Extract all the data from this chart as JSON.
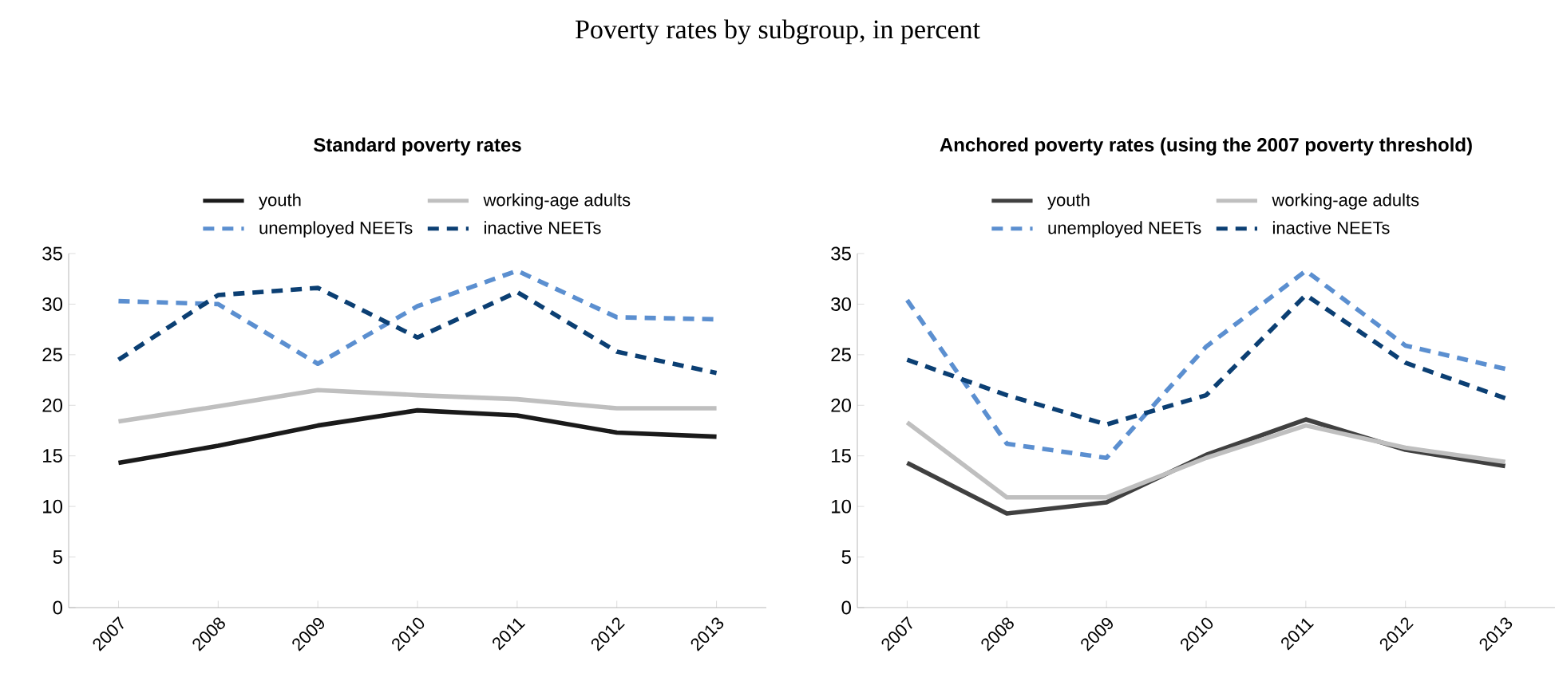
{
  "chart_data": [
    {
      "type": "line",
      "title": "Standard poverty rates",
      "annotations": [
        "Poverty rates by subgroup, in percent"
      ],
      "categories": [
        "2007",
        "2008",
        "2009",
        "2010",
        "2011",
        "2012",
        "2013"
      ],
      "ylim": [
        0,
        35
      ],
      "yticks": [
        0,
        5,
        10,
        15,
        20,
        25,
        30,
        35
      ],
      "legend": "top",
      "grid": false,
      "marker": "none",
      "series": [
        {
          "name": "youth",
          "color": "#1a1a1a",
          "line_style": "solid",
          "values": [
            14.3,
            16.0,
            18.0,
            19.5,
            19.0,
            17.3,
            16.9
          ]
        },
        {
          "name": "working-age adults",
          "color": "#bfbfbf",
          "line_style": "solid",
          "values": [
            18.4,
            19.9,
            21.5,
            21.0,
            20.6,
            19.7,
            19.7
          ]
        },
        {
          "name": "unemployed NEETs",
          "color": "#5b8fd0",
          "line_style": "dashed",
          "values": [
            30.3,
            30.0,
            24.1,
            29.8,
            33.3,
            28.7,
            28.5
          ]
        },
        {
          "name": "inactive NEETs",
          "color": "#0b3f73",
          "line_style": "dashed",
          "values": [
            24.5,
            30.9,
            31.6,
            26.7,
            31.2,
            25.3,
            23.2
          ]
        }
      ]
    },
    {
      "type": "line",
      "title": "Anchored poverty rates (using the 2007 poverty threshold)",
      "categories": [
        "2007",
        "2008",
        "2009",
        "2010",
        "2011",
        "2012",
        "2013"
      ],
      "ylim": [
        0,
        35
      ],
      "yticks": [
        0,
        5,
        10,
        15,
        20,
        25,
        30,
        35
      ],
      "legend": "top",
      "grid": false,
      "marker": "none",
      "series": [
        {
          "name": "youth",
          "color": "#404040",
          "line_style": "solid",
          "values": [
            14.3,
            9.3,
            10.4,
            15.1,
            18.6,
            15.6,
            14.0
          ]
        },
        {
          "name": "working-age adults",
          "color": "#bfbfbf",
          "line_style": "solid",
          "values": [
            18.3,
            10.9,
            10.9,
            14.8,
            18.0,
            15.8,
            14.4
          ]
        },
        {
          "name": "unemployed NEETs",
          "color": "#5b8fd0",
          "line_style": "dashed",
          "values": [
            30.4,
            16.2,
            14.8,
            25.8,
            33.3,
            25.9,
            23.6
          ]
        },
        {
          "name": "inactive NEETs",
          "color": "#0b3f73",
          "line_style": "dashed",
          "values": [
            24.5,
            21.0,
            18.1,
            21.0,
            30.9,
            24.2,
            20.7
          ]
        }
      ]
    }
  ]
}
